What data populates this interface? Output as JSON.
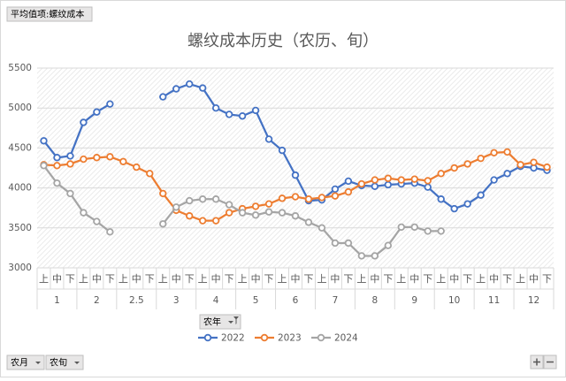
{
  "chart_data": {
    "type": "line",
    "title": "螺纹成本历史（农历、旬）",
    "categories": [
      "上",
      "中",
      "下",
      "上",
      "中",
      "下",
      "上",
      "中",
      "下",
      "上",
      "中",
      "下",
      "上",
      "中",
      "下",
      "上",
      "中",
      "下",
      "上",
      "中",
      "下",
      "上",
      "中",
      "下",
      "上",
      "中",
      "下",
      "上",
      "中",
      "下",
      "上",
      "中",
      "下",
      "上",
      "中",
      "下",
      "上",
      "中",
      "下"
    ],
    "groups": [
      "1",
      "2",
      "2.5",
      "3",
      "4",
      "5",
      "6",
      "7",
      "8",
      "9",
      "10",
      "11",
      "12"
    ],
    "series": [
      {
        "name": "2022",
        "color": "#4472c4",
        "values": [
          4590,
          4380,
          4400,
          4820,
          4950,
          5050,
          null,
          null,
          null,
          5140,
          5240,
          5300,
          5250,
          5000,
          4920,
          4900,
          4970,
          4610,
          4470,
          4160,
          3840,
          3850,
          3985,
          4085,
          4030,
          4020,
          4040,
          4050,
          4060,
          4010,
          3860,
          3740,
          3800,
          3910,
          4100,
          4180,
          4270,
          4250,
          4220
        ]
      },
      {
        "name": "2023",
        "color": "#ed7d31",
        "values": [
          4290,
          4280,
          4300,
          4360,
          4380,
          4390,
          4330,
          4260,
          4180,
          3930,
          3720,
          3650,
          3590,
          3590,
          3690,
          3740,
          3770,
          3800,
          3870,
          3890,
          3860,
          3880,
          3900,
          3950,
          4050,
          4100,
          4120,
          4100,
          4110,
          4090,
          4180,
          4250,
          4300,
          4370,
          4440,
          4450,
          4290,
          4320,
          4260
        ]
      },
      {
        "name": "2024",
        "color": "#a5a5a5",
        "values": [
          4280,
          4060,
          3930,
          3690,
          3580,
          3450,
          null,
          null,
          null,
          3550,
          3760,
          3840,
          3860,
          3860,
          3790,
          3690,
          3660,
          3700,
          3690,
          3650,
          3570,
          3500,
          3310,
          3310,
          3150,
          3150,
          3280,
          3510,
          3510,
          3460,
          3460,
          null,
          null,
          null,
          null,
          null,
          null,
          null,
          null
        ]
      }
    ],
    "ylim": [
      3000,
      5500
    ],
    "yticks": [
      3000,
      3500,
      4000,
      4500,
      5000,
      5500
    ],
    "grid": true,
    "legend": "bottom"
  },
  "pivot": {
    "value_field": "平均值项:螺纹成本",
    "legend_field": "农年",
    "axis_fields": [
      "农月",
      "农旬"
    ]
  }
}
